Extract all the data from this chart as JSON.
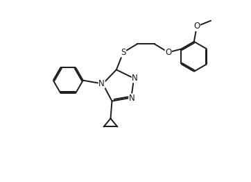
{
  "bg_color": "#ffffff",
  "line_color": "#1a1a1a",
  "lw": 1.4,
  "figsize": [
    3.62,
    2.62
  ],
  "dpi": 100,
  "xlim": [
    0,
    3.62
  ],
  "ylim": [
    0,
    2.62
  ]
}
